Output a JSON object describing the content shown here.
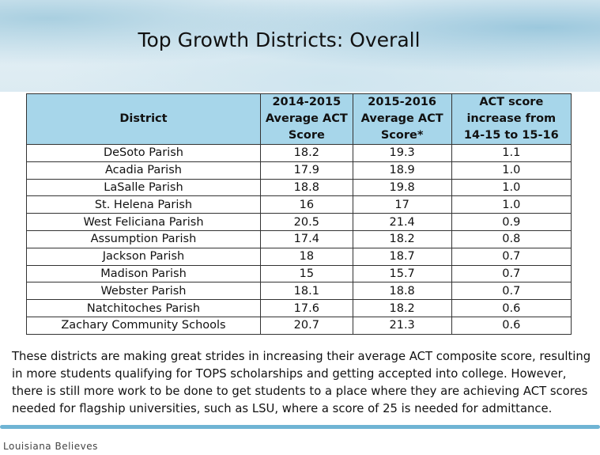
{
  "header": {
    "title": "Top Growth Districts: Overall"
  },
  "table": {
    "columns": [
      "District",
      "2014-2015 Average ACT Score",
      "2015-2016 Average ACT Score*",
      "ACT score increase from 14-15 to 15-16"
    ],
    "rows": [
      [
        "DeSoto Parish",
        "18.2",
        "19.3",
        "1.1"
      ],
      [
        "Acadia Parish",
        "17.9",
        "18.9",
        "1.0"
      ],
      [
        "LaSalle Parish",
        "18.8",
        "19.8",
        "1.0"
      ],
      [
        "St. Helena Parish",
        "16",
        "17",
        "1.0"
      ],
      [
        "West Feliciana Parish",
        "20.5",
        "21.4",
        "0.9"
      ],
      [
        "Assumption Parish",
        "17.4",
        "18.2",
        "0.8"
      ],
      [
        "Jackson Parish",
        "18",
        "18.7",
        "0.7"
      ],
      [
        "Madison Parish",
        "15",
        "15.7",
        "0.7"
      ],
      [
        "Webster Parish",
        "18.1",
        "18.8",
        "0.7"
      ],
      [
        "Natchitoches Parish",
        "17.6",
        "18.2",
        "0.6"
      ],
      [
        "Zachary Community Schools",
        "20.7",
        "21.3",
        "0.6"
      ]
    ]
  },
  "body": {
    "paragraph": "These districts are making great strides in increasing their average ACT composite score, resulting in more students qualifying for TOPS scholarships and getting accepted into college. However, there is still more work to be done to get students to a place where they are achieving ACT scores needed for flagship universities, such as LSU, where a score of 25 is needed for admittance."
  },
  "footer": {
    "brand": "Louisiana Believes"
  }
}
